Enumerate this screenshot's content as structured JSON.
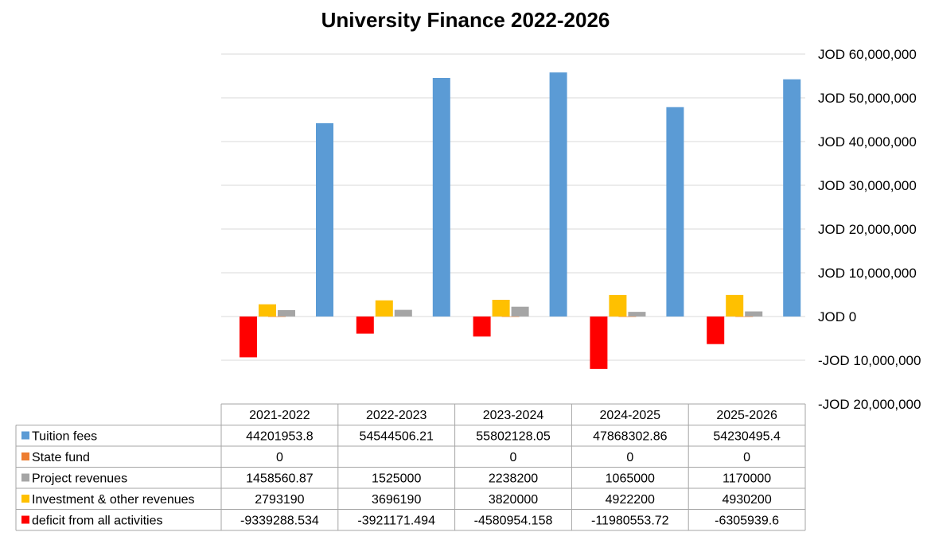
{
  "chart_data": {
    "type": "bar",
    "title": "University Finance 2022-2026",
    "categories": [
      "2021-2022",
      "2022-2023",
      "2023-2024",
      "2024-2025",
      "2025-2026"
    ],
    "y_ticks": [
      "JOD 60,000,000",
      "JOD 50,000,000",
      "JOD 40,000,000",
      "JOD 30,000,000",
      "JOD 20,000,000",
      "JOD 10,000,000",
      "JOD 0",
      "-JOD 10,000,000",
      "-JOD 20,000,000"
    ],
    "ylim": [
      -20000000,
      60000000
    ],
    "grid": true,
    "legend": "data-table",
    "series": [
      {
        "name": "Tuition fees",
        "color": "#5b9bd5",
        "values": [
          44201953.8,
          54544506.21,
          55802128.05,
          47868302.86,
          54230495.4
        ],
        "labels": [
          "44201953.8",
          "54544506.21",
          "55802128.05",
          "47868302.86",
          "54230495.4"
        ]
      },
      {
        "name": "State fund",
        "color": "#ed7d31",
        "values": [
          0,
          null,
          0,
          0,
          0
        ],
        "labels": [
          "0",
          "",
          "0",
          "0",
          "0"
        ]
      },
      {
        "name": "Project revenues",
        "color": "#a5a5a5",
        "values": [
          1458560.87,
          1525000,
          2238200,
          1065000,
          1170000
        ],
        "labels": [
          "1458560.87",
          "1525000",
          "2238200",
          "1065000",
          "1170000"
        ]
      },
      {
        "name": "Investment & other revenues",
        "color": "#ffc000",
        "values": [
          2793190,
          3696190,
          3820000,
          4922200,
          4930200
        ],
        "labels": [
          "2793190",
          "3696190",
          "3820000",
          "4922200",
          "4930200"
        ]
      },
      {
        "name": "deficit from all activities",
        "color": "#ff0000",
        "values": [
          -9339288.534,
          -3921171.494,
          -4580954.158,
          -11980553.72,
          -6305939.6
        ],
        "labels": [
          "-9339288.534",
          "-3921171.494",
          "-4580954.158",
          "-11980553.72",
          "-6305939.6"
        ]
      }
    ]
  }
}
